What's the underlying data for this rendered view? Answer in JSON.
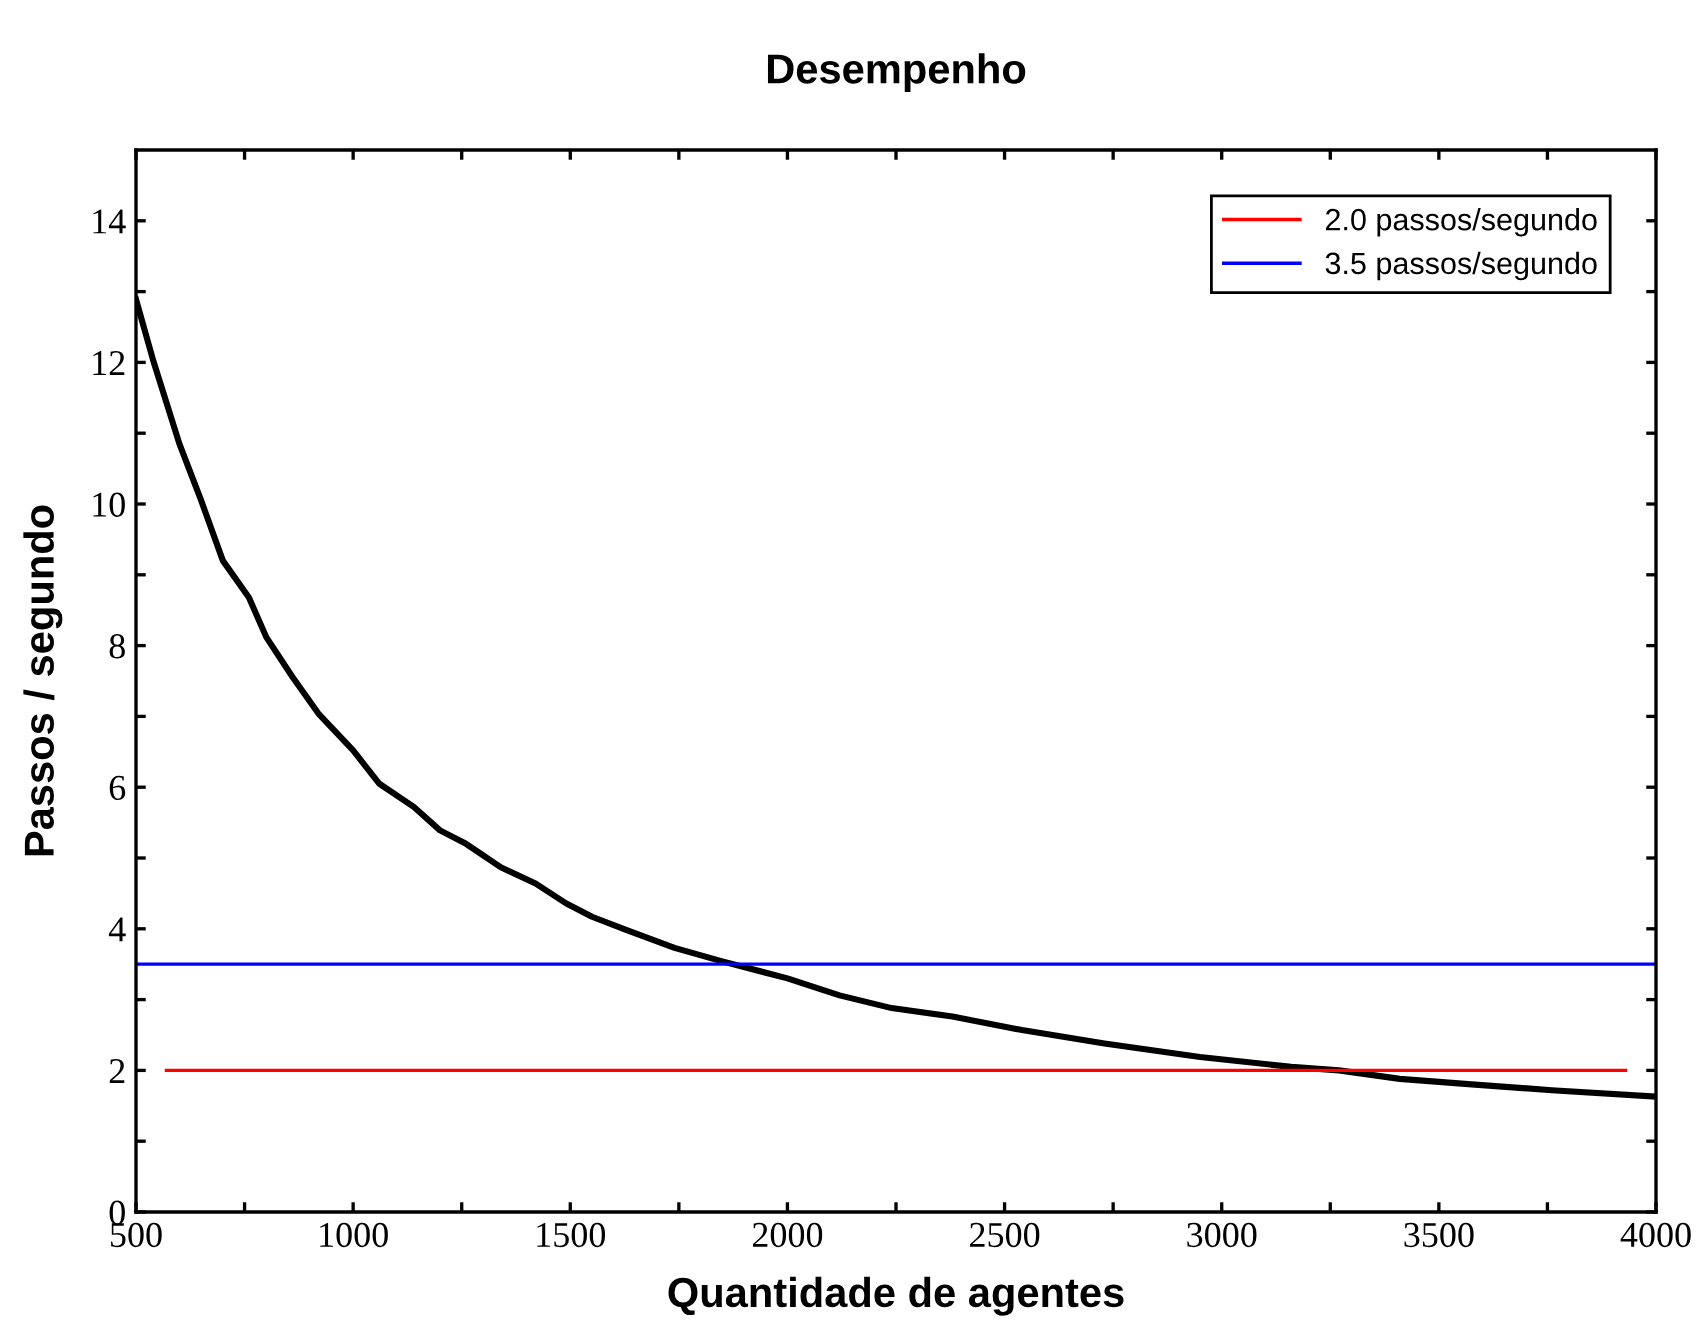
{
  "chart_data": {
    "type": "line",
    "title": "Desempenho",
    "xlabel": "Quantidade de agentes",
    "ylabel": "Passos / segundo",
    "xlim": [
      500,
      4000
    ],
    "ylim": [
      0,
      15
    ],
    "xticks": [
      500,
      {
        "value": 750,
        "label": null
      },
      1000,
      {
        "value": 1250,
        "label": null
      },
      1500,
      {
        "value": 1750,
        "label": null
      },
      2000,
      {
        "value": 2250,
        "label": null
      },
      2500,
      {
        "value": 2750,
        "label": null
      },
      3000,
      {
        "value": 3250,
        "label": null
      },
      3500,
      {
        "value": 3750,
        "label": null
      },
      4000
    ],
    "yticks": [
      0,
      {
        "value": 1,
        "label": null
      },
      2,
      {
        "value": 3,
        "label": null
      },
      4,
      {
        "value": 5,
        "label": null
      },
      6,
      {
        "value": 7,
        "label": null
      },
      8,
      {
        "value": 9,
        "label": null
      },
      10,
      {
        "value": 11,
        "label": null
      },
      12,
      {
        "value": 13,
        "label": null
      },
      14
    ],
    "grid": false,
    "legend": "top right",
    "marker": "none",
    "line_style": "solid",
    "series": [
      {
        "color": "#000000",
        "x": [
          500,
          540,
          600,
          650,
          700,
          760,
          800,
          860,
          920,
          1000,
          1060,
          1140,
          1200,
          1260,
          1340,
          1420,
          1490,
          1550,
          1630,
          1740,
          1850,
          2000,
          2120,
          2240,
          2380,
          2540,
          2730,
          2950,
          3160,
          3270,
          3410,
          3560,
          3760,
          4000
        ],
        "values": [
          12.89,
          12.02,
          10.85,
          10.05,
          9.2,
          8.68,
          8.12,
          7.56,
          7.04,
          6.52,
          6.05,
          5.72,
          5.39,
          5.2,
          4.87,
          4.64,
          4.36,
          4.17,
          3.98,
          3.73,
          3.54,
          3.3,
          3.06,
          2.88,
          2.76,
          2.57,
          2.38,
          2.19,
          2.05,
          2.0,
          1.88,
          1.81,
          1.72,
          1.63
        ]
      },
      {
        "name": "2.0 passos/segundo",
        "color": "#ff0000",
        "x": [
          570,
          3930
        ],
        "values": [
          2.0,
          2.0
        ]
      },
      {
        "name": "3.5 passos/segundo",
        "color": "#0000ff",
        "x": [
          500,
          4000
        ],
        "values": [
          3.5,
          3.5
        ]
      }
    ]
  }
}
